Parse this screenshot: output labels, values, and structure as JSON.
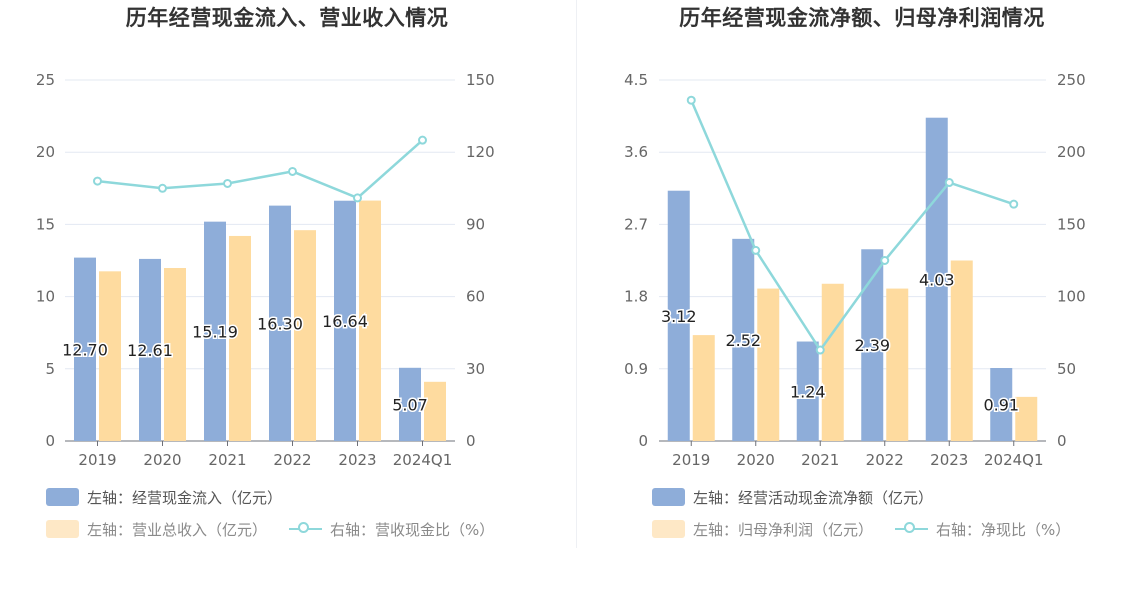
{
  "chart_data": [
    {
      "type": "bar",
      "title": "历年经营现金流入、营业收入情况",
      "categories": [
        "2019",
        "2020",
        "2021",
        "2022",
        "2023",
        "2024Q1"
      ],
      "left_axis": {
        "ticks": [
          "25",
          "20",
          "15",
          "10",
          "5",
          "0"
        ],
        "range": [
          0,
          25
        ]
      },
      "right_axis": {
        "ticks": [
          "150",
          "120",
          "90",
          "60",
          "30",
          "0"
        ],
        "range": [
          0,
          150
        ]
      },
      "series": [
        {
          "name": "左轴：经营现金流入（亿元）",
          "axis": "left",
          "type": "bar",
          "color": "#8eadd9",
          "values": [
            12.7,
            12.61,
            15.19,
            16.3,
            16.64,
            5.07
          ],
          "labels": [
            "12.70",
            "12.61",
            "15.19",
            "16.30",
            "16.64",
            "5.07"
          ]
        },
        {
          "name": "左轴：营业总收入（亿元）",
          "axis": "left",
          "type": "bar",
          "color": "#fedb9f",
          "values": [
            11.75,
            11.98,
            14.2,
            14.6,
            16.65,
            4.1
          ]
        },
        {
          "name": "右轴：营收现金比（%）",
          "axis": "right",
          "type": "line",
          "color": "#8ed8db",
          "values": [
            108,
            105,
            107,
            112,
            101,
            125
          ]
        }
      ],
      "grid": true,
      "legend": "bottom-left"
    },
    {
      "type": "bar",
      "title": "历年经营现金流净额、归母净利润情况",
      "categories": [
        "2019",
        "2020",
        "2021",
        "2022",
        "2023",
        "2024Q1"
      ],
      "left_axis": {
        "ticks": [
          "4.5",
          "3.6",
          "2.7",
          "1.8",
          "0.9",
          "0"
        ],
        "range": [
          0,
          4.5
        ]
      },
      "right_axis": {
        "ticks": [
          "250",
          "200",
          "150",
          "100",
          "50",
          "0"
        ],
        "range": [
          0,
          250
        ]
      },
      "series": [
        {
          "name": "左轴：经营活动现金流净额（亿元）",
          "axis": "left",
          "type": "bar",
          "color": "#8eadd9",
          "values": [
            3.12,
            2.52,
            1.24,
            2.39,
            4.03,
            0.91
          ],
          "labels": [
            "3.12",
            "2.52",
            "1.24",
            "2.39",
            "4.03",
            "0.91"
          ]
        },
        {
          "name": "左轴：归母净利润（亿元）",
          "axis": "left",
          "type": "bar",
          "color": "#fedb9f",
          "values": [
            1.32,
            1.9,
            1.96,
            1.9,
            2.25,
            0.55
          ]
        },
        {
          "name": "右轴：净现比（%）",
          "axis": "right",
          "type": "line",
          "color": "#8ed8db",
          "values": [
            236,
            132,
            63,
            125,
            179,
            164
          ]
        }
      ],
      "grid": true,
      "legend": "bottom-left"
    }
  ]
}
